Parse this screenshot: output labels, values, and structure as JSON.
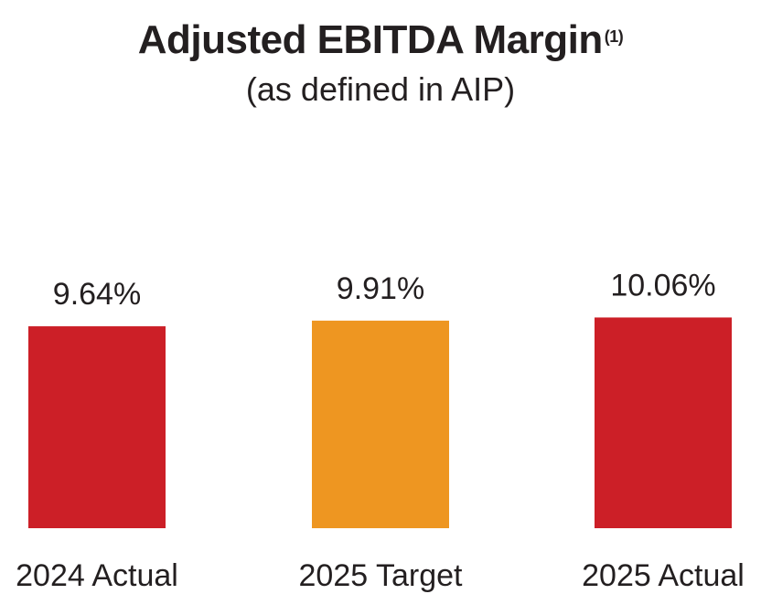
{
  "chart_data": {
    "type": "bar",
    "title": "Adjusted EBITDA Margin",
    "title_footnote": "(1)",
    "subtitle": "(as defined in AIP)",
    "categories": [
      "2024 Actual",
      "2025 Target",
      "2025 Actual"
    ],
    "values": [
      9.64,
      9.91,
      10.06
    ],
    "data_labels": [
      "9.64%",
      "9.91%",
      "10.06%"
    ],
    "bar_colors": [
      "#cc1f27",
      "#ee9621",
      "#cc1f27"
    ],
    "xlabel": "",
    "ylabel": "",
    "grid": false,
    "legend": "none"
  }
}
